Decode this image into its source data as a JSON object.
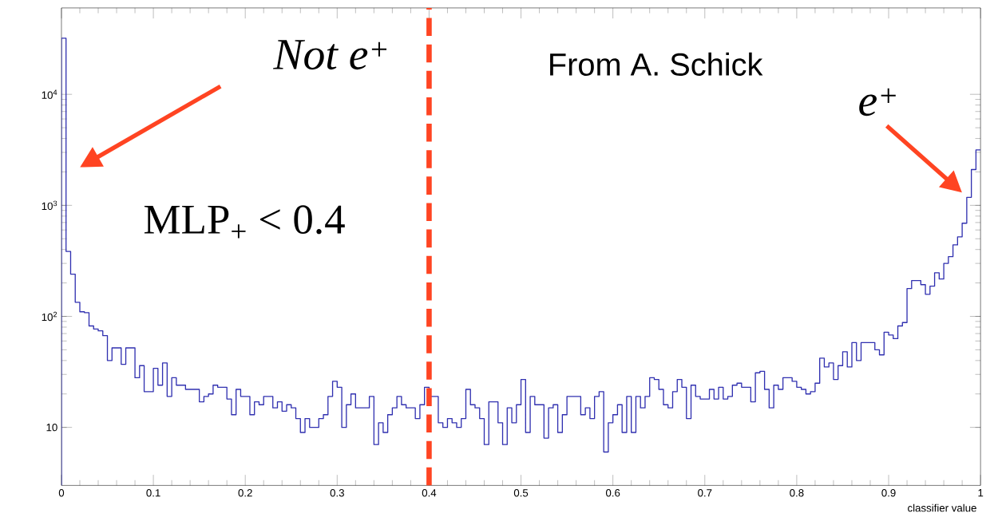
{
  "chart_data": {
    "type": "histogram",
    "xlabel": "classifier value",
    "bins": [
      0,
      0.005,
      0.01,
      0.015,
      0.02,
      0.025,
      0.03,
      0.035,
      0.04,
      0.045,
      0.05,
      0.055,
      0.06,
      0.065,
      0.07,
      0.075,
      0.08,
      0.085,
      0.09,
      0.095,
      0.1,
      0.105,
      0.11,
      0.115,
      0.12,
      0.125,
      0.13,
      0.135,
      0.14,
      0.145,
      0.15,
      0.155,
      0.16,
      0.165,
      0.17,
      0.175,
      0.18,
      0.185,
      0.19,
      0.195,
      0.2,
      0.205,
      0.21,
      0.215,
      0.22,
      0.225,
      0.23,
      0.235,
      0.24,
      0.245,
      0.25,
      0.255,
      0.26,
      0.265,
      0.27,
      0.275,
      0.28,
      0.285,
      0.29,
      0.295,
      0.3,
      0.305,
      0.31,
      0.315,
      0.32,
      0.325,
      0.33,
      0.335,
      0.34,
      0.345,
      0.35,
      0.355,
      0.36,
      0.365,
      0.37,
      0.375,
      0.38,
      0.385,
      0.39,
      0.395,
      0.4,
      0.405,
      0.41,
      0.415,
      0.42,
      0.425,
      0.43,
      0.435,
      0.44,
      0.445,
      0.45,
      0.455,
      0.46,
      0.465,
      0.47,
      0.475,
      0.48,
      0.485,
      0.49,
      0.495,
      0.5,
      0.505,
      0.51,
      0.515,
      0.52,
      0.525,
      0.53,
      0.535,
      0.54,
      0.545,
      0.55,
      0.555,
      0.56,
      0.565,
      0.57,
      0.575,
      0.58,
      0.585,
      0.59,
      0.595,
      0.6,
      0.605,
      0.61,
      0.615,
      0.62,
      0.625,
      0.63,
      0.635,
      0.64,
      0.645,
      0.65,
      0.655,
      0.66,
      0.665,
      0.67,
      0.675,
      0.68,
      0.685,
      0.69,
      0.695,
      0.7,
      0.705,
      0.71,
      0.715,
      0.72,
      0.725,
      0.73,
      0.735,
      0.74,
      0.745,
      0.75,
      0.755,
      0.76,
      0.765,
      0.77,
      0.775,
      0.78,
      0.785,
      0.79,
      0.795,
      0.8,
      0.805,
      0.81,
      0.815,
      0.82,
      0.825,
      0.83,
      0.835,
      0.84,
      0.845,
      0.85,
      0.855,
      0.86,
      0.865,
      0.87,
      0.875,
      0.88,
      0.885,
      0.89,
      0.895,
      0.9,
      0.905,
      0.91,
      0.915,
      0.92,
      0.925,
      0.93,
      0.935,
      0.94,
      0.945,
      0.95,
      0.955,
      0.96,
      0.965,
      0.97,
      0.975,
      0.98,
      0.985,
      0.99,
      0.995,
      1
    ],
    "values": [
      32000,
      385,
      240,
      134,
      110,
      108,
      82,
      77,
      74,
      67,
      40,
      52,
      52,
      37,
      52,
      52,
      28,
      36,
      21,
      21,
      34,
      24,
      38,
      19,
      28,
      24,
      24,
      22,
      22,
      22,
      17,
      19,
      20,
      24,
      23,
      23,
      18,
      13,
      22,
      19,
      19,
      13,
      17,
      16,
      19,
      19,
      15,
      17,
      14,
      16,
      15,
      12,
      9,
      12,
      10,
      10,
      12,
      13,
      19,
      26,
      23,
      10,
      16,
      20,
      15,
      15,
      15,
      19,
      7,
      11,
      9,
      13,
      15,
      19,
      16,
      15,
      15,
      12,
      16,
      23,
      19,
      19,
      11,
      10,
      12,
      11,
      10,
      12,
      22,
      16,
      15,
      12,
      7,
      17,
      17,
      11,
      7,
      15,
      11,
      16,
      27,
      9,
      19,
      16,
      16,
      8,
      15,
      16,
      9,
      13,
      19,
      19,
      19,
      13,
      15,
      12,
      19,
      21,
      6,
      11,
      13,
      16,
      9,
      19,
      9,
      19,
      15,
      19,
      28,
      27,
      22,
      16,
      15,
      21,
      27,
      23,
      12,
      24,
      19,
      18,
      18,
      22,
      18,
      23,
      18,
      19,
      24,
      25,
      23,
      23,
      17,
      31,
      32,
      22,
      15,
      24,
      22,
      28,
      28,
      26,
      23,
      22,
      20,
      21,
      25,
      42,
      35,
      38,
      27,
      36,
      48,
      35,
      58,
      40,
      58,
      58,
      58,
      50,
      45,
      72,
      68,
      63,
      82,
      88,
      178,
      210,
      210,
      193,
      158,
      187,
      247,
      217,
      300,
      345,
      440,
      520,
      690,
      1180,
      2100,
      3160
    ],
    "color": "#3030b0",
    "log": "y",
    "xlim": [
      0,
      1
    ],
    "xticks": [
      0,
      0.1,
      0.2,
      0.3,
      0.4,
      0.5,
      0.6,
      0.7,
      0.8,
      0.9,
      1
    ],
    "ylim": [
      3,
      60000
    ],
    "yticks": [
      10,
      {
        "value": 100,
        "label": "10$^{2}$"
      },
      {
        "value": 1000,
        "label": "10$^{3}$"
      },
      {
        "value": 10000,
        "label": "10$^{4}$"
      }
    ],
    "ref_lines": [
      {
        "axis": "x",
        "value": 0.4,
        "color": "#ff4422",
        "line_style": "dashed"
      }
    ],
    "annotations": [
      "Not e$^{+}$",
      "From A. Schick",
      "e$^{+}$",
      "MLP$_{+}$ < 0.4"
    ]
  }
}
